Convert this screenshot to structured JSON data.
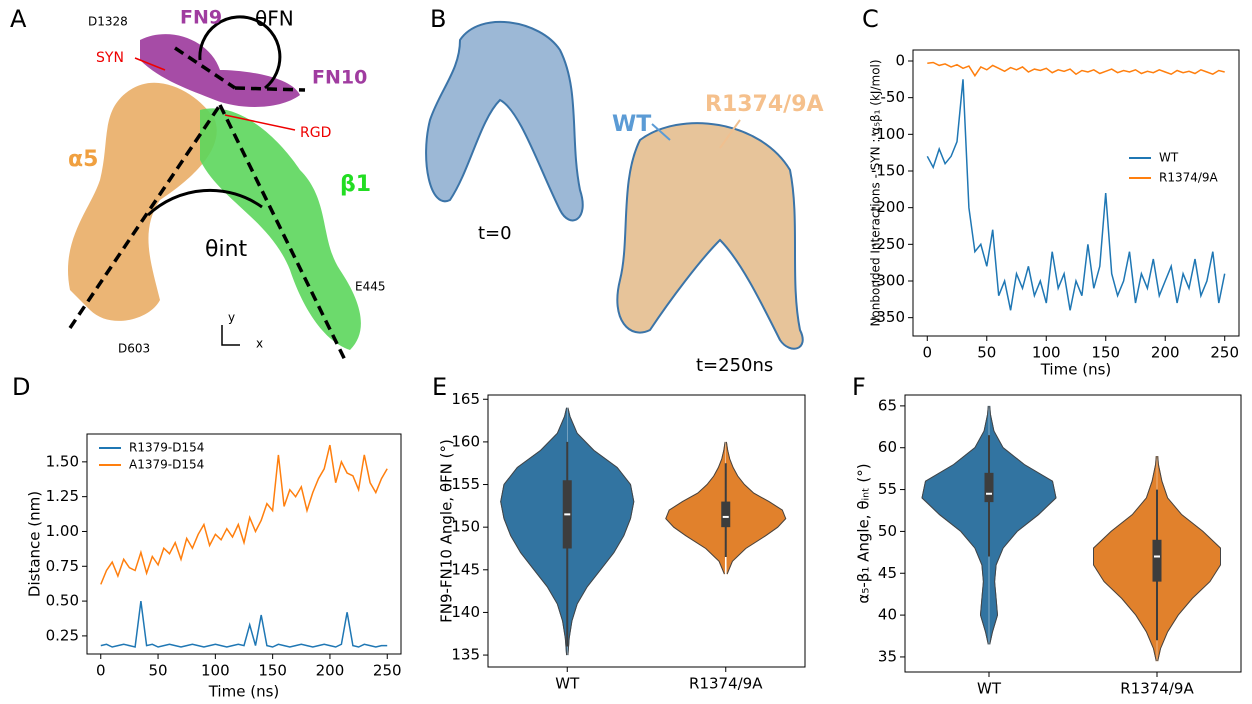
{
  "structure_panels": {
    "A": {
      "panel": "A",
      "labels": [
        "D1328",
        "FN9",
        "SYN",
        "θFN",
        "FN10",
        "RGD",
        "α5",
        "β1",
        "θint",
        "E445",
        "D603",
        "y",
        "x"
      ]
    },
    "B": {
      "panel": "B",
      "labels": [
        "WT",
        "R1374/9A",
        "t=0",
        "t=250ns"
      ]
    }
  },
  "chart_data": [
    {
      "type": "line",
      "panel": "C",
      "xlabel": "Time (ns)",
      "ylabel": "Nonbonded Interactions - SYN : α₅β₁ (kJ/mol)",
      "xlim": [
        -12,
        262
      ],
      "ylim": [
        -375,
        15
      ],
      "xticks": [
        0,
        50,
        100,
        150,
        200,
        250
      ],
      "yticks": [
        0,
        -50,
        -100,
        -150,
        -200,
        -250,
        -300,
        -350
      ],
      "legend": "center right",
      "x": [
        0,
        5,
        10,
        15,
        20,
        25,
        30,
        35,
        40,
        45,
        50,
        55,
        60,
        65,
        70,
        75,
        80,
        85,
        90,
        95,
        100,
        105,
        110,
        115,
        120,
        125,
        130,
        135,
        140,
        145,
        150,
        155,
        160,
        165,
        170,
        175,
        180,
        185,
        190,
        195,
        200,
        205,
        210,
        215,
        220,
        225,
        230,
        235,
        240,
        245,
        250
      ],
      "series": [
        {
          "name": "WT",
          "color": "#1f77b4",
          "values": [
            -130,
            -145,
            -120,
            -140,
            -130,
            -110,
            -25,
            -200,
            -260,
            -250,
            -280,
            -230,
            -320,
            -300,
            -340,
            -290,
            -310,
            -280,
            -320,
            -300,
            -330,
            -260,
            -310,
            -290,
            -340,
            -300,
            -320,
            -250,
            -310,
            -280,
            -180,
            -290,
            -320,
            -300,
            -260,
            -330,
            -290,
            -310,
            -270,
            -320,
            -300,
            -280,
            -330,
            -290,
            -310,
            -270,
            -320,
            -300,
            -260,
            -330,
            -290
          ]
        },
        {
          "name": "R1374/9A",
          "color": "#ff7f0e",
          "values": [
            -3,
            -2,
            -6,
            -4,
            -8,
            -5,
            -10,
            -7,
            -20,
            -8,
            -12,
            -6,
            -10,
            -14,
            -9,
            -12,
            -8,
            -15,
            -11,
            -13,
            -10,
            -16,
            -12,
            -14,
            -11,
            -18,
            -13,
            -15,
            -12,
            -17,
            -14,
            -11,
            -16,
            -13,
            -15,
            -12,
            -17,
            -14,
            -16,
            -12,
            -15,
            -18,
            -13,
            -16,
            -14,
            -17,
            -12,
            -15,
            -18,
            -13,
            -15
          ]
        }
      ]
    },
    {
      "type": "line",
      "panel": "D",
      "xlabel": "Time (ns)",
      "ylabel": "Distance (nm)",
      "xlim": [
        -12,
        262
      ],
      "ylim": [
        0.12,
        1.7
      ],
      "xticks": [
        0,
        50,
        100,
        150,
        200,
        250
      ],
      "yticks": [
        {
          "value": 0.25,
          "label": "0.25"
        },
        {
          "value": 0.5,
          "label": "0.50"
        },
        {
          "value": 0.75,
          "label": "0.75"
        },
        {
          "value": 1,
          "label": "1.00"
        },
        {
          "value": 1.25,
          "label": "1.25"
        },
        {
          "value": 1.5,
          "label": "1.50"
        }
      ],
      "legend": "upper left",
      "x": [
        0,
        5,
        10,
        15,
        20,
        25,
        30,
        35,
        40,
        45,
        50,
        55,
        60,
        65,
        70,
        75,
        80,
        85,
        90,
        95,
        100,
        105,
        110,
        115,
        120,
        125,
        130,
        135,
        140,
        145,
        150,
        155,
        160,
        165,
        170,
        175,
        180,
        185,
        190,
        195,
        200,
        205,
        210,
        215,
        220,
        225,
        230,
        235,
        240,
        245,
        250
      ],
      "series": [
        {
          "name": "R1379-D154",
          "color": "#1f77b4",
          "values": [
            0.18,
            0.19,
            0.17,
            0.18,
            0.19,
            0.18,
            0.17,
            0.5,
            0.18,
            0.19,
            0.17,
            0.18,
            0.19,
            0.18,
            0.17,
            0.18,
            0.19,
            0.18,
            0.17,
            0.18,
            0.19,
            0.18,
            0.17,
            0.18,
            0.19,
            0.18,
            0.33,
            0.18,
            0.4,
            0.18,
            0.17,
            0.19,
            0.18,
            0.17,
            0.18,
            0.19,
            0.18,
            0.17,
            0.18,
            0.19,
            0.18,
            0.17,
            0.19,
            0.42,
            0.18,
            0.17,
            0.19,
            0.18,
            0.17,
            0.18,
            0.18
          ]
        },
        {
          "name": "A1379-D154",
          "color": "#ff7f0e",
          "values": [
            0.62,
            0.72,
            0.78,
            0.68,
            0.8,
            0.74,
            0.72,
            0.85,
            0.7,
            0.82,
            0.76,
            0.88,
            0.84,
            0.92,
            0.8,
            0.95,
            0.88,
            0.98,
            1.05,
            0.9,
            0.98,
            0.94,
            1.02,
            0.96,
            1.05,
            0.92,
            1.1,
            1.0,
            1.08,
            1.2,
            1.15,
            1.55,
            1.18,
            1.3,
            1.25,
            1.32,
            1.15,
            1.28,
            1.38,
            1.45,
            1.62,
            1.35,
            1.5,
            1.42,
            1.4,
            1.3,
            1.55,
            1.35,
            1.28,
            1.38,
            1.45
          ]
        }
      ]
    },
    {
      "type": "violin",
      "panel": "E",
      "ylabel": "FN9-FN10 Angle, θFN (°)",
      "ylim": [
        133.6,
        165.5
      ],
      "yticks": [
        135,
        140,
        145,
        150,
        155,
        160,
        165
      ],
      "categories": [
        "WT",
        "R1374/9A"
      ],
      "violins": [
        {
          "color": "#3274a1",
          "kde_y": [
            135,
            137,
            139,
            141,
            143,
            145,
            147,
            149,
            151,
            153,
            155,
            157,
            159,
            161,
            163,
            164
          ],
          "kde_density": [
            0.01,
            0.03,
            0.07,
            0.15,
            0.3,
            0.5,
            0.7,
            0.85,
            0.95,
            1.0,
            0.95,
            0.75,
            0.4,
            0.15,
            0.04,
            0.01
          ],
          "whisker_low": 136,
          "q1": 147.5,
          "median": 151.5,
          "q3": 155.5,
          "whisker_high": 160
        },
        {
          "color": "#e1812c",
          "kde_y": [
            144.5,
            146,
            147.5,
            149,
            150,
            151,
            152,
            153,
            154,
            155,
            156,
            157,
            158,
            159,
            160
          ],
          "kde_density": [
            0.02,
            0.1,
            0.3,
            0.6,
            0.78,
            0.9,
            0.85,
            0.65,
            0.42,
            0.28,
            0.18,
            0.11,
            0.06,
            0.03,
            0.01
          ],
          "whisker_low": 146.5,
          "q1": 150,
          "median": 151.2,
          "q3": 153,
          "whisker_high": 157.5
        }
      ]
    },
    {
      "type": "violin",
      "panel": "F",
      "ylabel": "α₅-β₁ Angle, θᵢₙₜ (°)",
      "ylim": [
        33.2,
        66.3
      ],
      "yticks": [
        35,
        40,
        45,
        50,
        55,
        60,
        65
      ],
      "categories": [
        "WT",
        "R1374/9A"
      ],
      "violins": [
        {
          "color": "#3274a1",
          "kde_y": [
            36.5,
            38,
            40,
            42,
            44,
            46,
            48,
            50,
            52,
            54,
            56,
            58,
            60,
            62,
            64,
            65
          ],
          "kde_density": [
            0.01,
            0.05,
            0.12,
            0.1,
            0.08,
            0.1,
            0.2,
            0.4,
            0.7,
            0.95,
            0.9,
            0.5,
            0.2,
            0.07,
            0.02,
            0.01
          ],
          "whisker_low": 47,
          "q1": 53.5,
          "median": 54.5,
          "q3": 57,
          "whisker_high": 61.5
        },
        {
          "color": "#e1812c",
          "kde_y": [
            34.5,
            36,
            38,
            40,
            42,
            44,
            46,
            48,
            50,
            52,
            54,
            56,
            58,
            59
          ],
          "kde_density": [
            0.01,
            0.05,
            0.15,
            0.3,
            0.5,
            0.75,
            0.9,
            0.9,
            0.65,
            0.35,
            0.15,
            0.07,
            0.02,
            0.01
          ],
          "whisker_low": 37,
          "q1": 44,
          "median": 47,
          "q3": 49,
          "whisker_high": 55
        }
      ]
    }
  ]
}
